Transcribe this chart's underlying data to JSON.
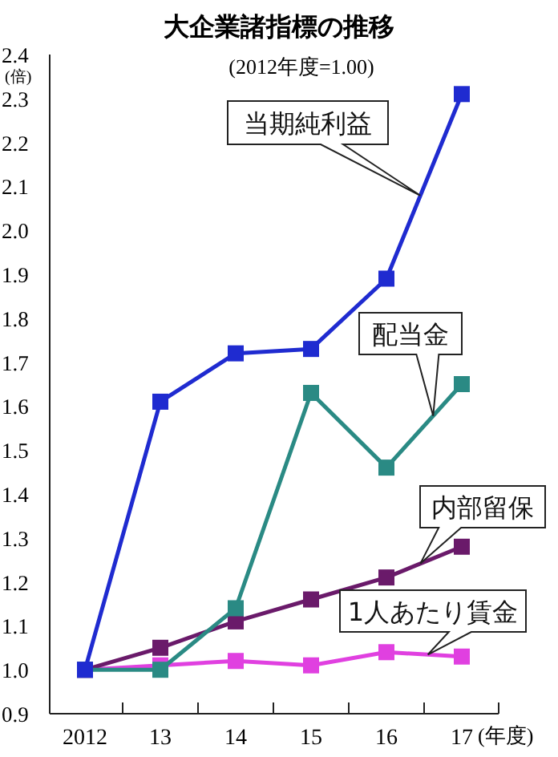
{
  "chart_data": {
    "type": "line",
    "title": "大企業諸指標の推移",
    "subtitle": "(2012年度=1.00)",
    "xlabel": "(年度)",
    "ylabel": "(倍)",
    "categories": [
      "2012",
      "13",
      "14",
      "15",
      "16",
      "17"
    ],
    "ylim": [
      0.9,
      2.4
    ],
    "yticks": [
      {
        "value": 0.9,
        "label": "0.9"
      },
      {
        "value": 1.0,
        "label": "1.0"
      },
      {
        "value": 1.1,
        "label": "1.1"
      },
      {
        "value": 1.2,
        "label": "1.2"
      },
      {
        "value": 1.3,
        "label": "1.3"
      },
      {
        "value": 1.4,
        "label": "1.4"
      },
      {
        "value": 1.5,
        "label": "1.5"
      },
      {
        "value": 1.6,
        "label": "1.6"
      },
      {
        "value": 1.7,
        "label": "1.7"
      },
      {
        "value": 1.8,
        "label": "1.8"
      },
      {
        "value": 1.9,
        "label": "1.9"
      },
      {
        "value": 2.0,
        "label": "2.0"
      },
      {
        "value": 2.1,
        "label": "2.1"
      },
      {
        "value": 2.2,
        "label": "2.2"
      },
      {
        "value": 2.3,
        "label": "2.3"
      },
      {
        "value": 2.4,
        "label": "2.4"
      }
    ],
    "marker": "square",
    "line_style": "solid",
    "grid": false,
    "series": [
      {
        "name": "当期純利益",
        "color": "#1f2bd0",
        "values": [
          1.0,
          1.61,
          1.72,
          1.73,
          1.89,
          2.31
        ]
      },
      {
        "name": "配当金",
        "color": "#2a8a84",
        "values": [
          1.0,
          1.0,
          1.14,
          1.63,
          1.46,
          1.65
        ]
      },
      {
        "name": "内部留保",
        "color": "#6a1a6a",
        "values": [
          1.0,
          1.05,
          1.11,
          1.16,
          1.21,
          1.28
        ]
      },
      {
        "name": "1人あたり賃金",
        "color": "#e040e0",
        "values": [
          1.0,
          1.01,
          1.02,
          1.01,
          1.04,
          1.03
        ]
      }
    ]
  }
}
